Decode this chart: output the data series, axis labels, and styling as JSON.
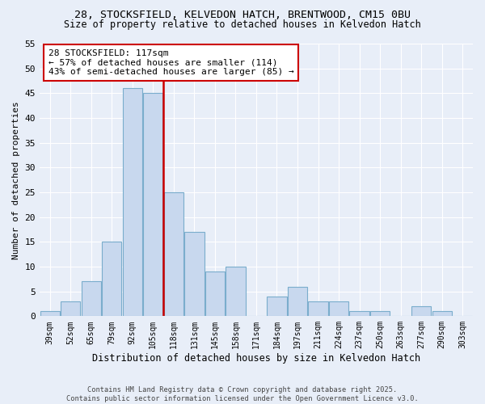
{
  "title": "28, STOCKSFIELD, KELVEDON HATCH, BRENTWOOD, CM15 0BU",
  "subtitle": "Size of property relative to detached houses in Kelvedon Hatch",
  "xlabel": "Distribution of detached houses by size in Kelvedon Hatch",
  "ylabel": "Number of detached properties",
  "categories": [
    "39sqm",
    "52sqm",
    "65sqm",
    "79sqm",
    "92sqm",
    "105sqm",
    "118sqm",
    "131sqm",
    "145sqm",
    "158sqm",
    "171sqm",
    "184sqm",
    "197sqm",
    "211sqm",
    "224sqm",
    "237sqm",
    "250sqm",
    "263sqm",
    "277sqm",
    "290sqm",
    "303sqm"
  ],
  "values": [
    1,
    3,
    7,
    15,
    46,
    45,
    25,
    17,
    9,
    10,
    0,
    4,
    6,
    3,
    3,
    1,
    1,
    0,
    2,
    1,
    0
  ],
  "bar_color": "#c8d8ee",
  "bar_edge_color": "#7aadcc",
  "reference_line_color": "#cc0000",
  "ref_line_index": 6,
  "annotation_text": "28 STOCKSFIELD: 117sqm\n← 57% of detached houses are smaller (114)\n43% of semi-detached houses are larger (85) →",
  "annotation_box_color": "#ffffff",
  "annotation_box_edge_color": "#cc0000",
  "ylim": [
    0,
    55
  ],
  "yticks": [
    0,
    5,
    10,
    15,
    20,
    25,
    30,
    35,
    40,
    45,
    50,
    55
  ],
  "footer": "Contains HM Land Registry data © Crown copyright and database right 2025.\nContains public sector information licensed under the Open Government Licence v3.0.",
  "background_color": "#e8eef8",
  "plot_background_color": "#e8eef8",
  "title_fontsize": 9.5,
  "subtitle_fontsize": 8.5,
  "bar_width": 0.95
}
